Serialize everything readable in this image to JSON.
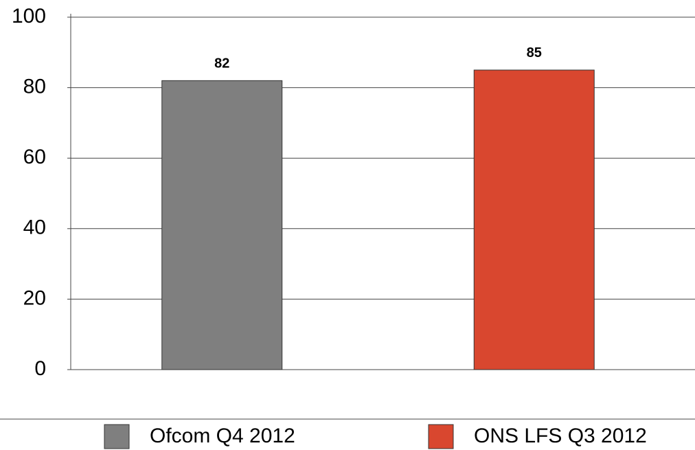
{
  "chart_data": {
    "type": "bar",
    "series": [
      {
        "name": "Ofcom Q4 2012",
        "color": "#7f7f7f",
        "values": [
          82
        ]
      },
      {
        "name": "ONS LFS Q3 2012",
        "color": "#d9472f",
        "values": [
          85
        ]
      }
    ],
    "ylim": [
      0,
      100
    ],
    "yticks": [
      0,
      20,
      40,
      60,
      80,
      100
    ],
    "grid": true,
    "legend": "bottom"
  }
}
